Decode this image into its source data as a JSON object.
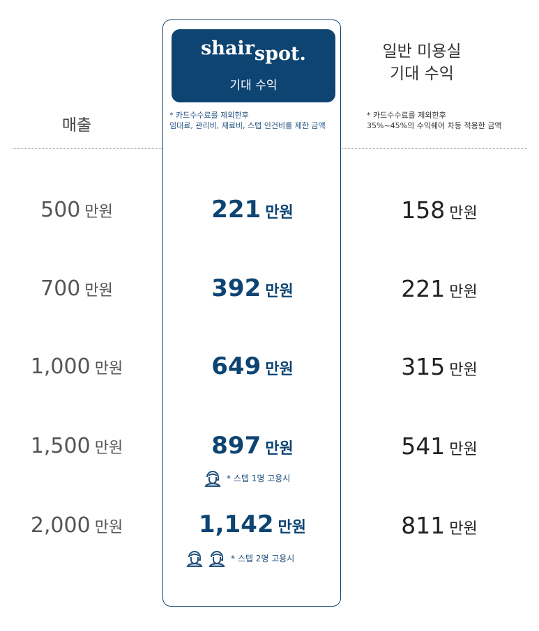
{
  "header": {
    "revenue_label": "매출",
    "general_title_line1": "일반 미용실",
    "general_title_line2": "기대 수익",
    "general_note_line1": "* 카드수수료를 제외한후",
    "general_note_line2": "35%~45%의 수익쉐어 차등 적용한 금액"
  },
  "brand": {
    "logo_part1": "shair",
    "logo_part2": "spot.",
    "subtitle": "기대 수익",
    "note_line1": "* 카드수수료를 제외한후",
    "note_line2": "임대료, 관리비, 재료비, 스텝 인건비를 제한 금액"
  },
  "unit": "만원",
  "rows": [
    {
      "revenue": "500",
      "shair": "221",
      "general": "158"
    },
    {
      "revenue": "700",
      "shair": "392",
      "general": "221"
    },
    {
      "revenue": "1,000",
      "shair": "649",
      "general": "315"
    },
    {
      "revenue": "1,500",
      "shair": "897",
      "general": "541",
      "staff_note": "* 스텝 1명 고용시"
    },
    {
      "revenue": "2,000",
      "shair": "1,142",
      "general": "811",
      "staff_note": "* 스텝 2명 고용시"
    }
  ],
  "colors": {
    "brand": "#0d4472",
    "text": "#333333"
  },
  "icons": [
    "staff-person-icon"
  ]
}
